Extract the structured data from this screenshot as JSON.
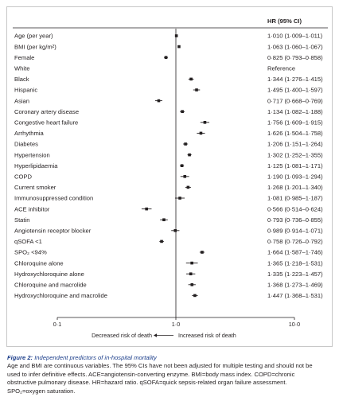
{
  "chart_data": {
    "type": "forest",
    "column_header": "HR (95% CI)",
    "rows": [
      {
        "label": "Age (per year)",
        "hr": 1.01,
        "lo": 1.009,
        "hi": 1.011,
        "text": "1·010 (1·009–1·011)"
      },
      {
        "label": "BMI (per kg/m²)",
        "hr": 1.063,
        "lo": 1.06,
        "hi": 1.067,
        "text": "1·063 (1·060–1·067)"
      },
      {
        "label": "Female",
        "hr": 0.825,
        "lo": 0.793,
        "hi": 0.858,
        "text": "0·825 (0·793–0·858)"
      },
      {
        "label": "White",
        "hr": null,
        "lo": null,
        "hi": null,
        "text": "Reference"
      },
      {
        "label": "Black",
        "hr": 1.344,
        "lo": 1.276,
        "hi": 1.415,
        "text": "1·344 (1·276–1·415)"
      },
      {
        "label": "Hispanic",
        "hr": 1.495,
        "lo": 1.4,
        "hi": 1.597,
        "text": "1·495 (1·400–1·597)"
      },
      {
        "label": "Asian",
        "hr": 0.717,
        "lo": 0.668,
        "hi": 0.769,
        "text": "0·717 (0·668–0·769)"
      },
      {
        "label": "Coronary artery disease",
        "hr": 1.134,
        "lo": 1.082,
        "hi": 1.188,
        "text": "1·134 (1·082–1·188)"
      },
      {
        "label": "Congestive heart failure",
        "hr": 1.756,
        "lo": 1.609,
        "hi": 1.915,
        "text": "1·756 (1·609–1·915)"
      },
      {
        "label": "Arrhythmia",
        "hr": 1.626,
        "lo": 1.504,
        "hi": 1.758,
        "text": "1·626 (1·504–1·758)"
      },
      {
        "label": "Diabetes",
        "hr": 1.206,
        "lo": 1.151,
        "hi": 1.264,
        "text": "1·206 (1·151–1·264)"
      },
      {
        "label": "Hypertension",
        "hr": 1.302,
        "lo": 1.252,
        "hi": 1.355,
        "text": "1·302 (1·252–1·355)"
      },
      {
        "label": "Hyperlipidaemia",
        "hr": 1.125,
        "lo": 1.081,
        "hi": 1.171,
        "text": "1·125 (1·081–1·171)"
      },
      {
        "label": "COPD",
        "hr": 1.19,
        "lo": 1.093,
        "hi": 1.294,
        "text": "1·190 (1·093–1·294)"
      },
      {
        "label": "Current smoker",
        "hr": 1.268,
        "lo": 1.201,
        "hi": 1.34,
        "text": "1·268 (1·201–1·340)"
      },
      {
        "label": "Immunosuppressed condition",
        "hr": 1.081,
        "lo": 0.985,
        "hi": 1.187,
        "text": "1·081 (0·985–1·187)"
      },
      {
        "label": "ACE inhibitor",
        "hr": 0.566,
        "lo": 0.514,
        "hi": 0.624,
        "text": "0·566 (0·514–0·624)"
      },
      {
        "label": "Statin",
        "hr": 0.793,
        "lo": 0.736,
        "hi": 0.855,
        "text": "0·793 (0·736–0·855)"
      },
      {
        "label": "Angiotensin receptor blocker",
        "hr": 0.989,
        "lo": 0.914,
        "hi": 1.071,
        "text": "0·989 (0·914–1·071)"
      },
      {
        "label": "qSOFA <1",
        "hr": 0.758,
        "lo": 0.726,
        "hi": 0.792,
        "text": "0·758 (0·726–0·792)"
      },
      {
        "label": "SPO₂ <94%",
        "hr": 1.664,
        "lo": 1.587,
        "hi": 1.746,
        "text": "1·664 (1·587–1·746)"
      },
      {
        "label": "Chloroquine alone",
        "hr": 1.365,
        "lo": 1.218,
        "hi": 1.531,
        "text": "1·365 (1·218–1·531)"
      },
      {
        "label": "Hydroxychloroquine alone",
        "hr": 1.335,
        "lo": 1.223,
        "hi": 1.457,
        "text": "1·335 (1·223–1·457)"
      },
      {
        "label": "Chloroquine and macrolide",
        "hr": 1.368,
        "lo": 1.273,
        "hi": 1.469,
        "text": "1·368 (1·273–1·469)"
      },
      {
        "label": "Hydroxychloroquine and macrolide",
        "hr": 1.447,
        "lo": 1.368,
        "hi": 1.531,
        "text": "1·447 (1·368–1·531)"
      }
    ],
    "x_scale": "log",
    "xlim": [
      0.1,
      10.0
    ],
    "x_ticks": [
      0.1,
      1.0,
      10.0
    ],
    "x_tick_labels": [
      "0·1",
      "1·0",
      "10·0"
    ],
    "reference_line": 1.0,
    "direction_left": "Decreased risk of death",
    "direction_right": "Increased risk of death"
  },
  "caption": {
    "title": "Figure 2: Independent predictors of in-hospital mortality",
    "line1": "Age and BMI are continuous variables. The 95% CIs have not been adjusted for multiple testing and should not be",
    "line2": "used to infer definitive effects. ACE=angiotensin-converting enzyme. BMI=body mass index. COPD=chronic",
    "line3": "obstructive pulmonary disease. HR=hazard ratio. qSOFA=quick sepsis-related organ failure assessment.",
    "line4": "SPO₂=oxygen saturation."
  },
  "colors": {
    "text": "#231f20",
    "caption_title": "#1b3d8a",
    "frame": "#c8c8c8"
  }
}
